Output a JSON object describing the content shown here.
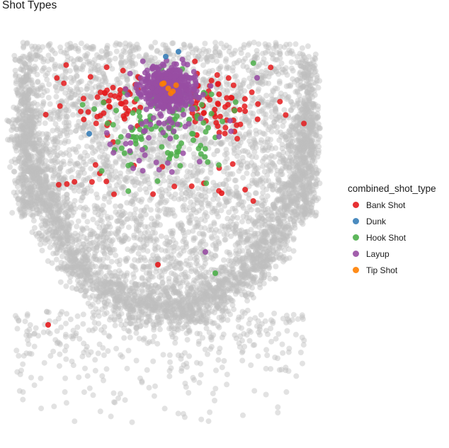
{
  "chart_data": {
    "type": "scatter",
    "title": "Shot Types",
    "xlabel": "",
    "ylabel": "",
    "grid": false,
    "legend_title": "combined_shot_type",
    "legend_position": "right",
    "background_series": {
      "color": "#bebebe",
      "opacity": 0.45,
      "count": 6500
    },
    "xlim": [
      -250,
      250
    ],
    "ylim": [
      -60,
      800
    ],
    "series": [
      {
        "name": "Bank Shot",
        "color": "#e41a1c",
        "count": 140
      },
      {
        "name": "Dunk",
        "color": "#377eb8",
        "count": 12
      },
      {
        "name": "Hook Shot",
        "color": "#4daf4a",
        "count": 110
      },
      {
        "name": "Layup",
        "color": "#984ea3",
        "count": 500
      },
      {
        "name": "Tip Shot",
        "color": "#ff7f00",
        "count": 6
      }
    ]
  }
}
